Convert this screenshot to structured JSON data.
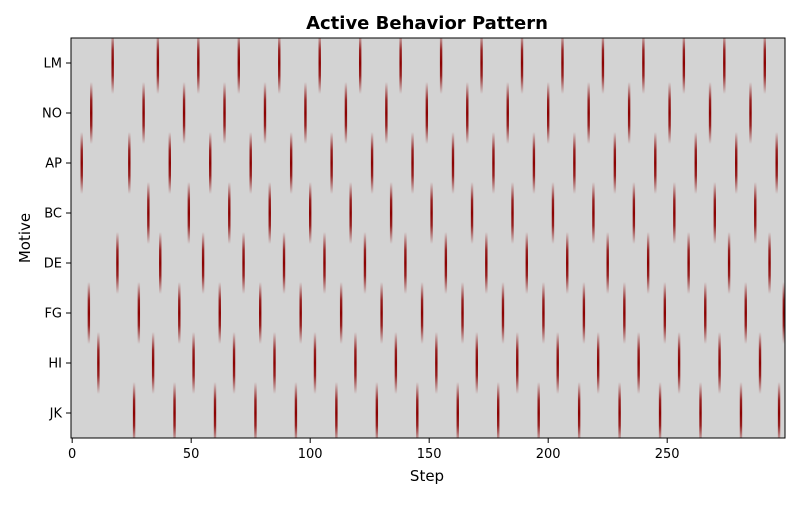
{
  "chart_data": {
    "type": "heatmap",
    "title": "Active Behavior Pattern",
    "xlabel": "Step",
    "ylabel": "Motive",
    "xlim": [
      0,
      299
    ],
    "x_ticks": [
      0,
      50,
      100,
      150,
      200,
      250
    ],
    "rows": [
      "LM",
      "NO",
      "AP",
      "BC",
      "DE",
      "FG",
      "HI",
      "JK"
    ],
    "colors": {
      "background": "#d3d3d3",
      "active": "#8b0000"
    },
    "active_steps": {
      "LM": [
        17,
        36,
        53,
        70,
        87,
        104,
        121,
        138,
        155,
        172,
        189,
        206,
        223,
        240,
        257,
        274,
        291
      ],
      "NO": [
        8,
        30,
        47,
        64,
        81,
        98,
        115,
        132,
        149,
        166,
        183,
        200,
        217,
        234,
        251,
        268,
        285
      ],
      "AP": [
        4,
        24,
        41,
        58,
        75,
        92,
        109,
        126,
        143,
        160,
        177,
        194,
        211,
        228,
        245,
        262,
        279,
        296
      ],
      "BC": [
        32,
        49,
        66,
        83,
        100,
        117,
        134,
        151,
        168,
        185,
        202,
        219,
        236,
        253,
        270,
        287
      ],
      "DE": [
        19,
        37,
        55,
        72,
        89,
        106,
        123,
        140,
        157,
        174,
        191,
        208,
        225,
        242,
        259,
        276,
        293
      ],
      "FG": [
        7,
        28,
        45,
        62,
        79,
        96,
        113,
        130,
        147,
        164,
        181,
        198,
        215,
        232,
        249,
        266,
        283,
        299
      ],
      "HI": [
        11,
        34,
        51,
        68,
        85,
        102,
        119,
        136,
        153,
        170,
        187,
        204,
        221,
        238,
        255,
        272,
        289
      ],
      "JK": [
        26,
        43,
        60,
        77,
        94,
        111,
        128,
        145,
        162,
        179,
        196,
        213,
        230,
        247,
        264,
        281,
        297
      ]
    }
  }
}
